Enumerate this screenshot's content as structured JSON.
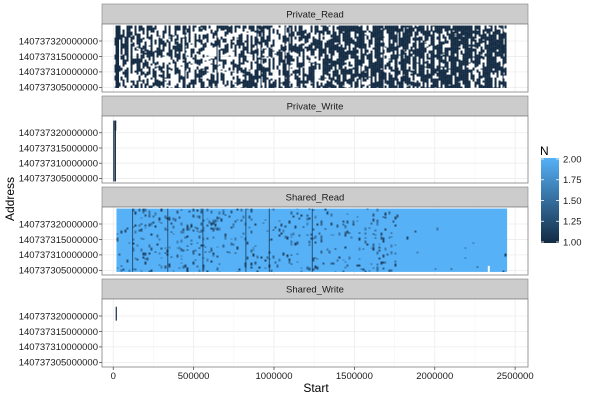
{
  "chart_data": {
    "type": "heatmap",
    "xlabel": "Start",
    "ylabel": "Address",
    "xlim": [
      -70000,
      2580000
    ],
    "ylim": [
      140737303500000,
      140737325500000
    ],
    "x_ticks": [
      0,
      500000,
      1000000,
      1500000,
      2000000,
      2500000
    ],
    "x_tick_labels": [
      "0",
      "500000",
      "1000000",
      "1500000",
      "2000000",
      "2500000"
    ],
    "y_ticks": [
      140737305000000,
      140737310000000,
      140737315000000,
      140737320000000
    ],
    "y_tick_labels": [
      "140737305000000",
      "140737310000000",
      "140737315000000",
      "140737320000000"
    ],
    "fill_legend": {
      "title": "N",
      "min": 1.0,
      "max": 2.0,
      "breaks": [
        "1.00",
        "1.25",
        "1.50",
        "1.75",
        "2.00"
      ],
      "low_color": "#132b43",
      "high_color": "#56b1f7"
    },
    "panels": [
      {
        "name": "Private_Read",
        "x_range": [
          8000,
          2450000
        ],
        "y_range": [
          140737304800000,
          140737325000000
        ],
        "fill": "mixed",
        "dominant_n": 1.0,
        "density": 0.55
      },
      {
        "name": "Private_Write",
        "x_range": [
          0,
          20000
        ],
        "y_range": [
          140737304000000,
          140737324000000
        ],
        "fill": "sparse",
        "dominant_n": 1.0
      },
      {
        "name": "Shared_Read",
        "x_range": [
          20000,
          2450000
        ],
        "y_range": [
          140737304500000,
          140737325000000
        ],
        "fill": "mostly_high",
        "dominant_n": 2.0
      },
      {
        "name": "Shared_Write",
        "x_range": [
          15000,
          20000
        ],
        "y_range": [
          140737318500000,
          140737323000000
        ],
        "fill": "sparse",
        "dominant_n": 1.0
      }
    ],
    "grid": true,
    "legend_position": "right"
  }
}
